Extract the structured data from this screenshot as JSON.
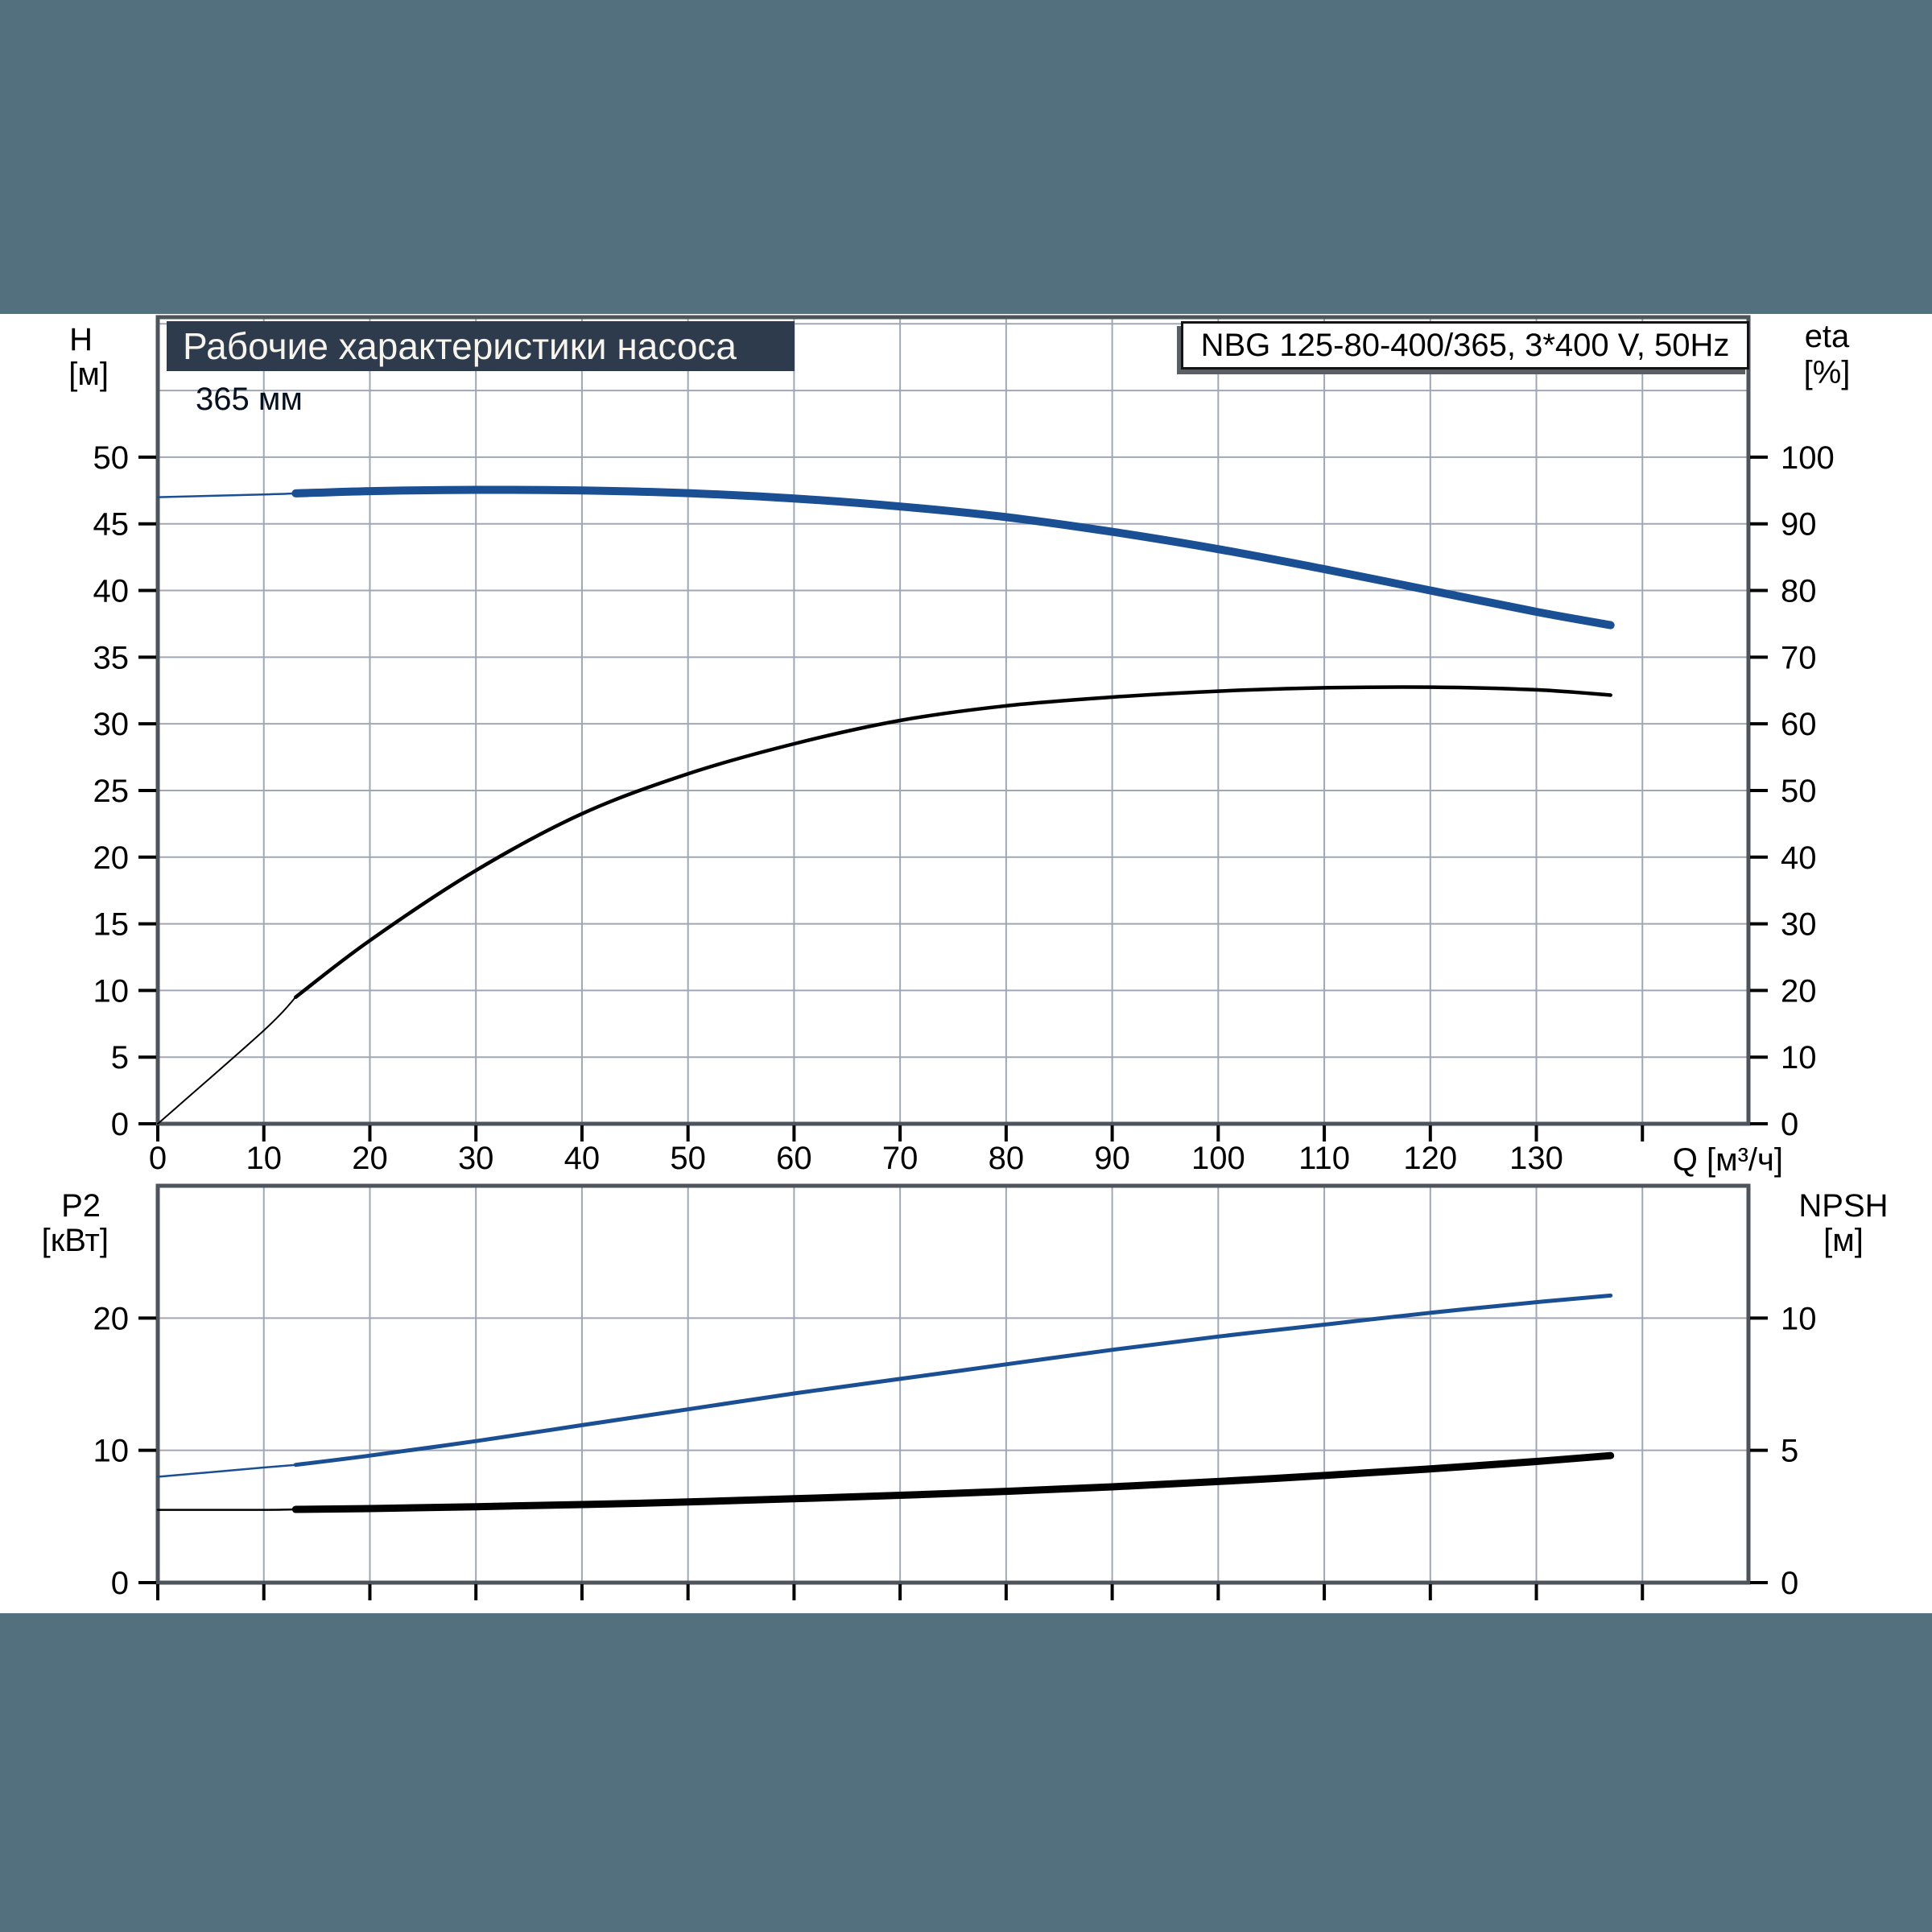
{
  "header": {
    "title": "Рабочие характеристики насоса",
    "pump_label": "NBG 125-80-400/365, 3*400 V, 50Hz"
  },
  "annotations": {
    "impeller_diameter": "365 мм"
  },
  "axis_headers": {
    "h_name": "H",
    "h_unit": "[м]",
    "eta_name": "eta",
    "eta_unit": "[%]",
    "p2_name": "P2",
    "p2_unit": "[кВт]",
    "npsh_name": "NPSH",
    "npsh_unit": "[м]",
    "q_label": "Q [м³/ч]"
  },
  "colors": {
    "page_background": "#53707E",
    "panel_background": "#FFFFFF",
    "title_bar_background": "#2D3B4C",
    "title_text": "#F7F4EC",
    "curve_blue": "#1A4F94",
    "curve_black": "#000000",
    "gridline": "#A0A7B4",
    "plot_border": "#4E545C",
    "tick": "#000000"
  },
  "chart_data": [
    {
      "type": "line",
      "title": "Рабочие характеристики насоса",
      "x_axis": {
        "label": "Q [м³/ч]",
        "min": 0,
        "max": 150,
        "tick_step": 10,
        "tick_max": 140,
        "label_max": 130,
        "gridline_step": 10,
        "show_labels": true
      },
      "y_left": {
        "label": "H [м]",
        "min": 0,
        "max": 60.5,
        "ticks": [
          0,
          5,
          10,
          15,
          20,
          25,
          30,
          35,
          40,
          45,
          50
        ],
        "gridline_step": 5
      },
      "y_right": {
        "label": "eta [%]",
        "min": 0,
        "max": 121,
        "ticks": [
          0,
          10,
          20,
          30,
          40,
          50,
          60,
          70,
          80,
          90,
          100
        ]
      },
      "series": [
        {
          "name": "head-curve-365mm",
          "axis": "left",
          "color": "#1A4F94",
          "thick_from": 13,
          "width_thin": 2.5,
          "width_thick": 10,
          "points": [
            [
              0,
              47.0
            ],
            [
              10,
              47.2
            ],
            [
              13,
              47.28
            ],
            [
              20,
              47.45
            ],
            [
              30,
              47.55
            ],
            [
              40,
              47.5
            ],
            [
              50,
              47.3
            ],
            [
              60,
              46.9
            ],
            [
              70,
              46.3
            ],
            [
              80,
              45.5
            ],
            [
              90,
              44.4
            ],
            [
              100,
              43.1
            ],
            [
              110,
              41.6
            ],
            [
              120,
              40.0
            ],
            [
              130,
              38.4
            ],
            [
              137,
              37.4
            ]
          ]
        },
        {
          "name": "efficiency-curve",
          "axis": "right",
          "color": "#000000",
          "thick_from": 13,
          "width_thin": 2,
          "width_thick": 4.5,
          "points": [
            [
              0,
              0
            ],
            [
              10,
              14
            ],
            [
              13,
              19
            ],
            [
              20,
              27.5
            ],
            [
              30,
              38
            ],
            [
              40,
              46.5
            ],
            [
              50,
              52.5
            ],
            [
              60,
              57
            ],
            [
              70,
              60.5
            ],
            [
              80,
              62.7
            ],
            [
              90,
              64
            ],
            [
              100,
              64.9
            ],
            [
              110,
              65.4
            ],
            [
              120,
              65.5
            ],
            [
              130,
              65.1
            ],
            [
              137,
              64.3
            ]
          ]
        }
      ]
    },
    {
      "type": "line",
      "title": "P2 / NPSH",
      "x_axis": {
        "label": "Q [м³/ч]",
        "min": 0,
        "max": 150,
        "tick_step": 10,
        "tick_max": 140,
        "label_max": -1,
        "gridline_step": 10,
        "show_labels": false
      },
      "y_left": {
        "label": "P2 [кВт]",
        "min": 0,
        "max": 30,
        "ticks": [
          0,
          10,
          20
        ],
        "gridline_step": 10
      },
      "y_right": {
        "label": "NPSH [м]",
        "min": 0,
        "max": 15,
        "ticks": [
          0,
          5,
          10
        ]
      },
      "series": [
        {
          "name": "p2-curve",
          "axis": "left",
          "color": "#1A4F94",
          "thick_from": 13,
          "width_thin": 2.5,
          "width_thick": 5,
          "points": [
            [
              0,
              8.0
            ],
            [
              10,
              8.7
            ],
            [
              13,
              8.9
            ],
            [
              20,
              9.6
            ],
            [
              30,
              10.7
            ],
            [
              40,
              11.9
            ],
            [
              50,
              13.1
            ],
            [
              60,
              14.3
            ],
            [
              70,
              15.4
            ],
            [
              80,
              16.5
            ],
            [
              90,
              17.6
            ],
            [
              100,
              18.6
            ],
            [
              110,
              19.5
            ],
            [
              120,
              20.4
            ],
            [
              130,
              21.2
            ],
            [
              137,
              21.7
            ]
          ]
        },
        {
          "name": "npsh-curve",
          "axis": "right",
          "color": "#000000",
          "thick_from": 13,
          "width_thin": 2.5,
          "width_thick": 9,
          "points": [
            [
              0,
              2.75
            ],
            [
              10,
              2.75
            ],
            [
              13,
              2.77
            ],
            [
              20,
              2.8
            ],
            [
              30,
              2.87
            ],
            [
              40,
              2.95
            ],
            [
              50,
              3.05
            ],
            [
              60,
              3.17
            ],
            [
              70,
              3.3
            ],
            [
              80,
              3.45
            ],
            [
              90,
              3.62
            ],
            [
              100,
              3.82
            ],
            [
              110,
              4.05
            ],
            [
              120,
              4.3
            ],
            [
              130,
              4.58
            ],
            [
              137,
              4.8
            ]
          ]
        }
      ]
    }
  ]
}
